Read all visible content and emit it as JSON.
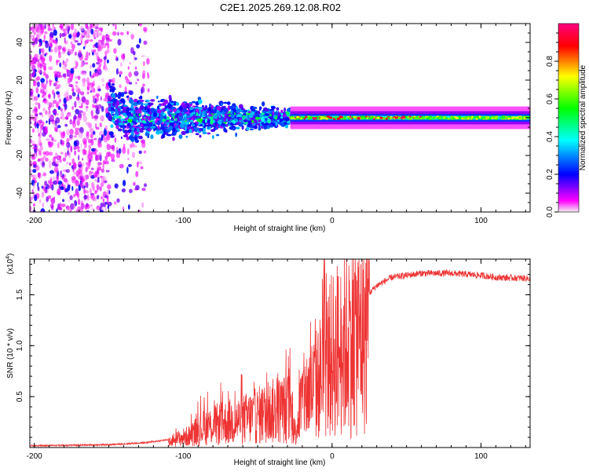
{
  "title": "C2E1.2025.269.12.08.R02",
  "chart_data": [
    {
      "type": "heatmap",
      "name": "spectrogram",
      "xlabel": "Height of straight line (km)",
      "ylabel": "Frequency (Hz)",
      "xlim": [
        -203,
        133
      ],
      "ylim": [
        -50,
        50
      ],
      "xticks": [
        -200,
        -100,
        0,
        100
      ],
      "xtick_labels": [
        "-200",
        "-100",
        "0",
        "100"
      ],
      "yticks": [
        -40,
        -20,
        0,
        20,
        40
      ],
      "ytick_labels": [
        "-40",
        "-20",
        "0",
        "20",
        "40"
      ],
      "colorbar": {
        "label": "Normalized spectral amplitude",
        "range": [
          0,
          1
        ],
        "ticks": [
          0.0,
          0.2,
          0.4,
          0.6,
          0.8
        ],
        "tick_labels": [
          "0.0",
          "0.2",
          "0.4",
          "0.6",
          "0.8"
        ],
        "colors": [
          "#f2f2f2",
          "#ff00ff",
          "#0000ff",
          "#00ffff",
          "#00ff00",
          "#ffff00",
          "#ff0000",
          "#ff0080"
        ]
      },
      "features": [
        {
          "label": "scattered noise",
          "x_range": [
            -203,
            -150
          ],
          "freq_range": [
            -50,
            50
          ],
          "amplitude": 0.15
        },
        {
          "label": "signal onset",
          "x": -148,
          "freq_center": 14,
          "amplitude": 0.3
        },
        {
          "label": "broad band",
          "x_range": [
            -150,
            -28
          ],
          "freq_center": 0,
          "freq_halfwidth": 7,
          "amplitude": 0.3
        },
        {
          "label": "narrow band",
          "x_range": [
            -28,
            133
          ],
          "freq_center": 0,
          "freq_halfwidth": 3,
          "amplitude": 0.6
        },
        {
          "label": "peak region",
          "x_range": [
            -25,
            60
          ],
          "freq_center": 0,
          "amplitude": 0.95
        }
      ]
    },
    {
      "type": "line",
      "name": "snr",
      "xlabel": "Height of straight line (km)",
      "ylabel": "SNR (10 * v/v)",
      "multiplier_label": "(x10",
      "multiplier_exp": "4",
      "xlim": [
        -203,
        133
      ],
      "ylim": [
        0,
        1.85
      ],
      "xticks": [
        -200,
        -100,
        0,
        100
      ],
      "xtick_labels": [
        "-200",
        "-100",
        "0",
        "100"
      ],
      "yticks": [
        0.5,
        1.0,
        1.5
      ],
      "ytick_labels": [
        "0.5",
        "1.0",
        "1.5"
      ],
      "line_color": "#ee3333",
      "series": [
        {
          "name": "SNR",
          "x": [
            -203,
            -150,
            -125,
            -110,
            -95,
            -90,
            -80,
            -60,
            -40,
            -28,
            -25,
            -20,
            -10,
            -5,
            0,
            5,
            10,
            15,
            20,
            30,
            40,
            60,
            80,
            100,
            110,
            133
          ],
          "y": [
            0.02,
            0.03,
            0.05,
            0.08,
            0.15,
            0.23,
            0.28,
            0.35,
            0.45,
            0.5,
            0.18,
            0.6,
            0.8,
            1.0,
            1.15,
            1.2,
            1.3,
            1.4,
            1.45,
            1.6,
            1.68,
            1.72,
            1.72,
            1.7,
            1.68,
            1.67
          ]
        }
      ]
    }
  ]
}
